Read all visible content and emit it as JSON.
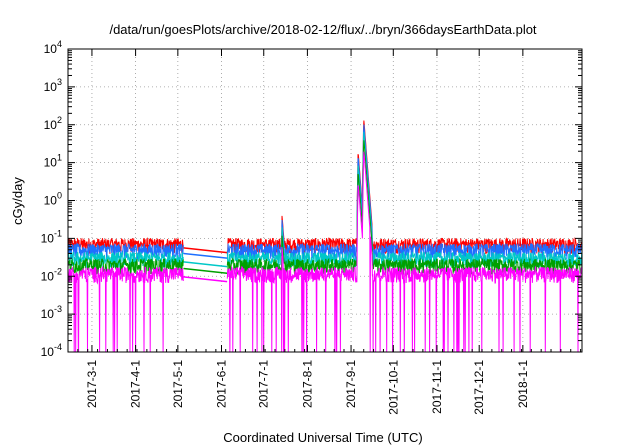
{
  "chart_data": {
    "type": "line",
    "title": "/data/run/goesPlots/archive/2018-02-12/flux/../bryn/366daysEarthData.plot",
    "xlabel": "Coordinated Universal Time (UTC)",
    "ylabel": "cGy/day",
    "yscale": "log",
    "ylim": [
      0.0001,
      10000
    ],
    "xlim": [
      "2017-02-12",
      "2018-02-12"
    ],
    "y_ticks": [
      {
        "base": "10",
        "exp": "-4"
      },
      {
        "base": "10",
        "exp": "-3"
      },
      {
        "base": "10",
        "exp": "-2"
      },
      {
        "base": "10",
        "exp": "-1"
      },
      {
        "base": "10",
        "exp": "0"
      },
      {
        "base": "10",
        "exp": "1"
      },
      {
        "base": "10",
        "exp": "2"
      },
      {
        "base": "10",
        "exp": "3"
      },
      {
        "base": "10",
        "exp": "4"
      }
    ],
    "x_ticks": [
      {
        "label": "2017-3-1",
        "date": "2017-03-01"
      },
      {
        "label": "2017-4-1",
        "date": "2017-04-01"
      },
      {
        "label": "2017-5-1",
        "date": "2017-05-01"
      },
      {
        "label": "2017-6-1",
        "date": "2017-06-01"
      },
      {
        "label": "2017-7-1",
        "date": "2017-07-01"
      },
      {
        "label": "2017-8-1",
        "date": "2017-08-01"
      },
      {
        "label": "2017-9-1",
        "date": "2017-09-01"
      },
      {
        "label": "2017-10-1",
        "date": "2017-10-01"
      },
      {
        "label": "2017-11-1",
        "date": "2017-11-01"
      },
      {
        "label": "2017-12-1",
        "date": "2017-12-01"
      },
      {
        "label": "2018-1-1",
        "date": "2018-01-01"
      }
    ],
    "grid": true,
    "data_gap": [
      "2017-05-05",
      "2017-06-05"
    ],
    "events": [
      {
        "date": "2017-07-14",
        "peak": 0.4
      },
      {
        "date": "2017-09-06",
        "peak": 20
      },
      {
        "date": "2017-09-10",
        "peak": 150
      }
    ],
    "series": [
      {
        "color": "#ff0000",
        "baseline": 0.07,
        "peak_factor": 1.0,
        "dropouts": false
      },
      {
        "color": "#1e6fff",
        "baseline": 0.05,
        "peak_factor": 0.78,
        "dropouts": false
      },
      {
        "color": "#00c8c8",
        "baseline": 0.03,
        "peak_factor": 0.5,
        "dropouts": false
      },
      {
        "color": "#00a000",
        "baseline": 0.02,
        "peak_factor": 0.3,
        "dropouts": false
      },
      {
        "color": "#ff00ff",
        "baseline": 0.012,
        "peak_factor": 0.15,
        "dropouts": true
      }
    ]
  }
}
